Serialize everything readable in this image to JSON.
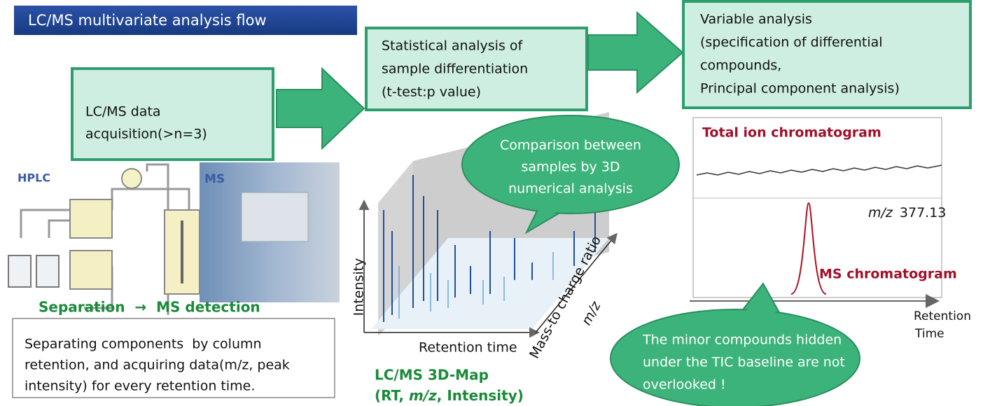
{
  "title": "LC/MS multivariate analysis flow",
  "steps": [
    {
      "lines": [
        "LC/MS data",
        "acquisition(>n=3)"
      ]
    },
    {
      "lines": [
        "Statistical analysis of",
        "sample differentiation",
        "(t-test:p value)"
      ]
    },
    {
      "lines": [
        "Variable analysis",
        "(specification of differential",
        "compounds,",
        "Principal component analysis)"
      ]
    }
  ],
  "hplc_label": "HPLC",
  "ms_label": "MS",
  "separation_label": "Separation  →  MS detection",
  "description": {
    "lines": [
      "Separating components  by column",
      "retention, and acquiring data(m/z, peak",
      "intensity) for every retention time."
    ]
  },
  "map": {
    "y_axis": "Intensity",
    "x_axis": "Retention time",
    "z_axis": "Mass-to charge ratio",
    "z_unit": "m/z",
    "caption": "LC/MS 3D-Map",
    "caption_parts": [
      "(RT, ",
      "m/z",
      ", Intensity)"
    ]
  },
  "bubble_top": {
    "lines": [
      "Comparison between",
      "samples by 3D",
      "numerical analysis"
    ]
  },
  "chromatogram": {
    "tic_label": "Total ion chromatogram",
    "mz_label": "m/z",
    "mz_value": "377.13",
    "ms_label": "MS chromatogram",
    "x_axis": [
      "Retention",
      "Time"
    ]
  },
  "bubble_bottom": {
    "lines": [
      "The minor compounds hidden",
      "under the TIC baseline are not",
      "overlooked !"
    ]
  }
}
